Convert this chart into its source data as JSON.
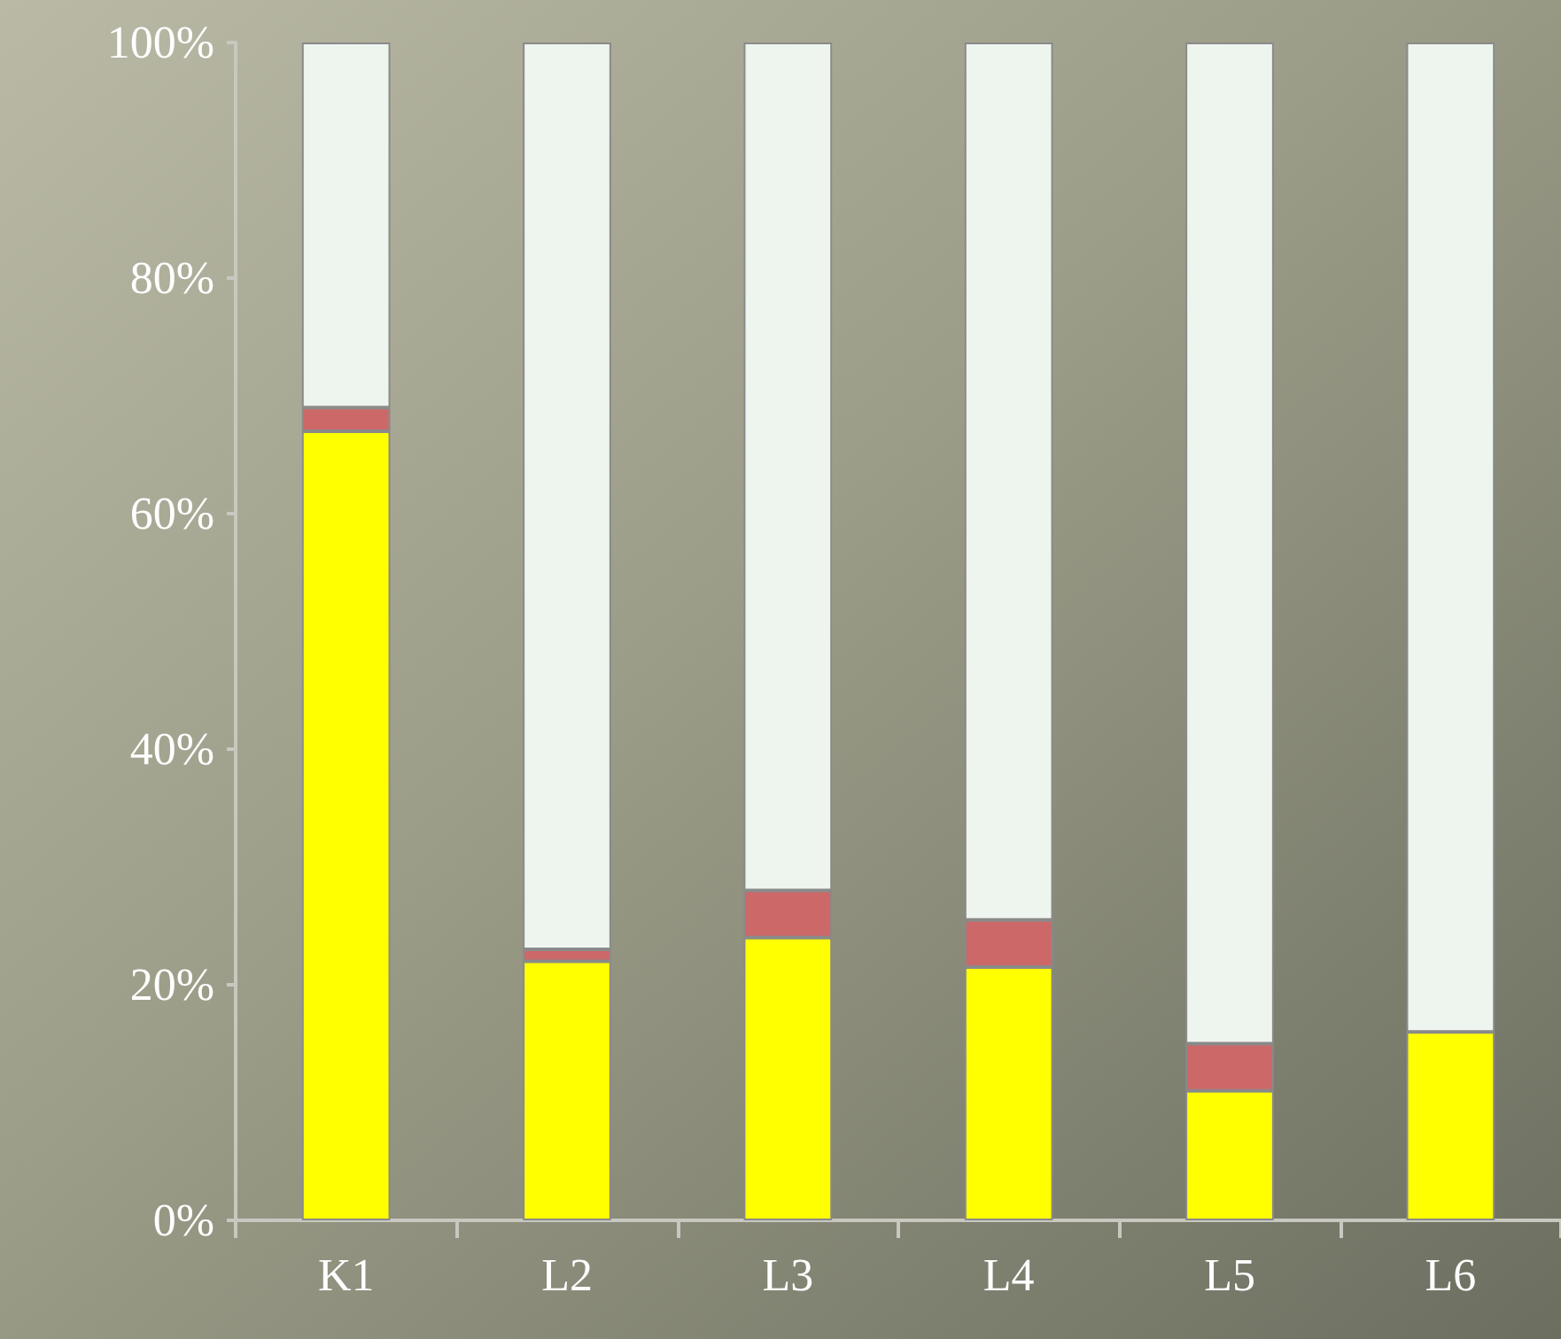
{
  "chart_data": {
    "type": "bar",
    "stacked": true,
    "categories": [
      "K1",
      "L2",
      "L3",
      "L4",
      "L5",
      "L6"
    ],
    "series": [
      {
        "color": "#ffff00",
        "values": [
          67,
          22,
          24,
          21.5,
          11,
          16
        ]
      },
      {
        "color": "#cd6868",
        "values": [
          2,
          1,
          4,
          4,
          4,
          0
        ]
      },
      {
        "color": "#eef5ef",
        "values": [
          31,
          77,
          72,
          74.5,
          85,
          84
        ]
      }
    ],
    "ylim": [
      0,
      100
    ],
    "yticks": [
      {
        "value": 0,
        "label": "0%"
      },
      {
        "value": 20,
        "label": "20%"
      },
      {
        "value": 40,
        "label": "40%"
      },
      {
        "value": 60,
        "label": "60%"
      },
      {
        "value": 80,
        "label": "80%"
      },
      {
        "value": 100,
        "label": "100%"
      }
    ],
    "grid": false
  }
}
